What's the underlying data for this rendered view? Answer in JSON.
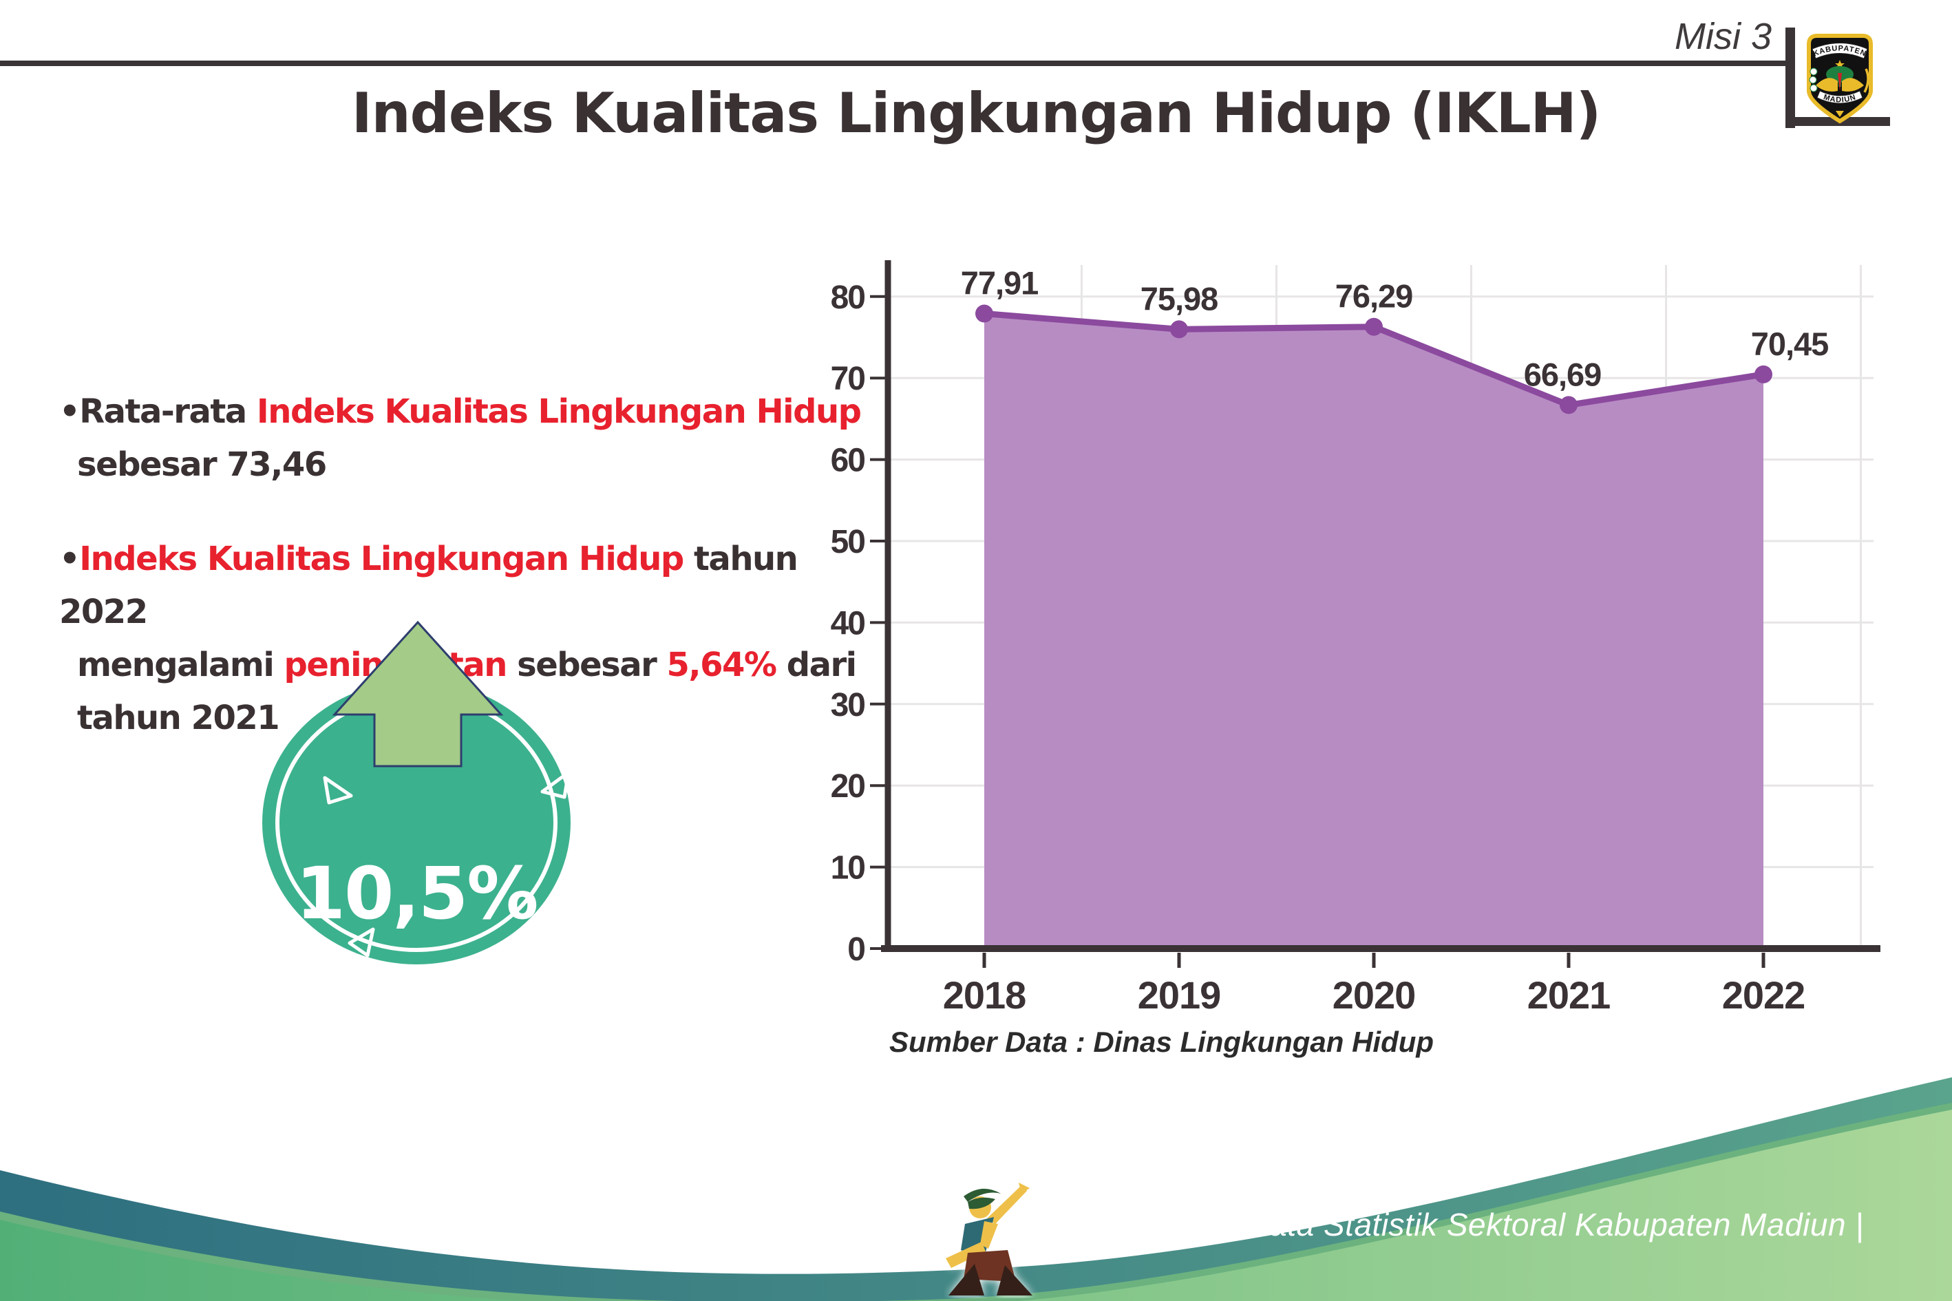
{
  "header": {
    "misi_label": "Misi 3",
    "title": "Indeks Kualitas Lingkungan Hidup (IKLH)",
    "logo": {
      "top_text": "KABUPATEN",
      "bottom_text": "MADIUN"
    }
  },
  "bullets": {
    "b1": {
      "prefix": "Rata-rata ",
      "highlight": "Indeks Kualitas Lingkungan Hidup",
      "line2": "sebesar 73,46"
    },
    "b2": {
      "highlight1": "Indeks Kualitas Lingkungan Hidup",
      "text1": " tahun 2022",
      "line2_pre": "mengalami ",
      "line2_hl1": "peningkatan",
      "line2_mid": " sebesar ",
      "line2_hl2": "5,64%",
      "line2_post": " dari",
      "line3": "tahun 2021"
    }
  },
  "badge": {
    "value": "10,5%",
    "circle_color": "#3cb18e",
    "arrow_color": "#a4cb87",
    "arrow_outline": "#2e3e6e"
  },
  "chart_data": {
    "type": "area",
    "title": "Indeks Kualitas Lingkungan Hidup (IKLH)",
    "categories": [
      "2018",
      "2019",
      "2020",
      "2021",
      "2022"
    ],
    "values": [
      77.91,
      75.98,
      76.29,
      66.69,
      70.45
    ],
    "labels": [
      "77,91",
      "75,98",
      "76,29",
      "66,69",
      "70,45"
    ],
    "label_dx": [
      22,
      0,
      0,
      -9,
      38
    ],
    "ylim": [
      0,
      80
    ],
    "ytick_step": 10,
    "grid": true,
    "legend": "none",
    "source": "Sumber Data : Dinas Lingkungan Hidup",
    "area_fill": "#b78cc3",
    "line_color": "#8b4a9e",
    "axis_color": "#3a3234",
    "grid_color": "#e8e5e7",
    "label_color": "#3a3234"
  },
  "footer": {
    "text": "Media Infografis Data Statistik Sektoral Kabupaten Madiun |"
  }
}
